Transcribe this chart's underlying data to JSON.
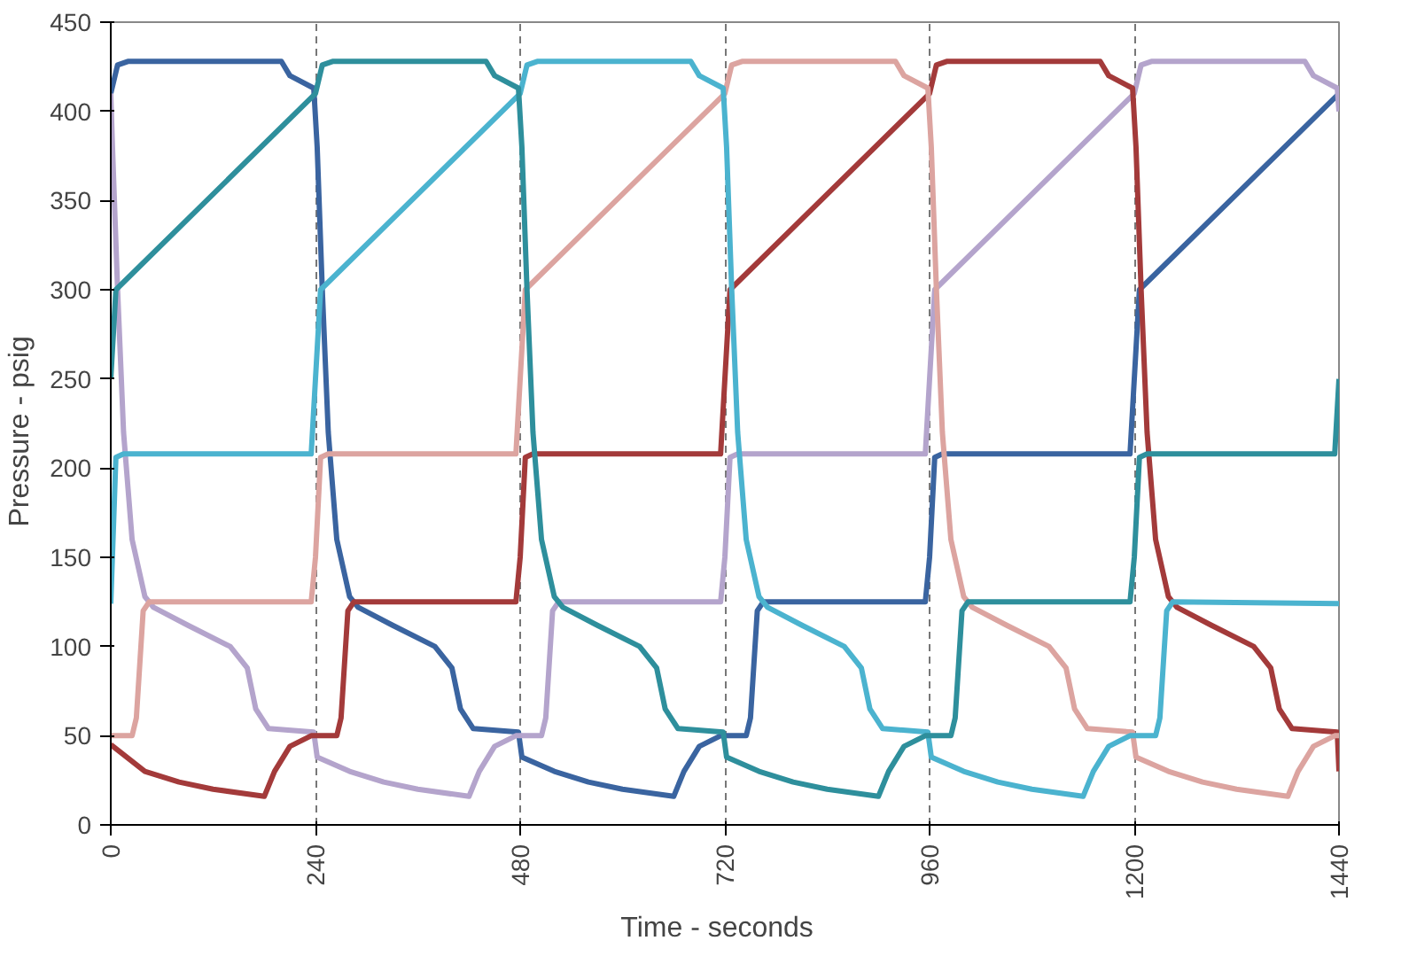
{
  "chart_data": {
    "type": "line",
    "xlabel": "Time  -  seconds",
    "ylabel": "Pressure  -  psig",
    "xlim": [
      0,
      1440
    ],
    "ylim": [
      0,
      450
    ],
    "xticks": [
      0,
      240,
      480,
      720,
      960,
      1200,
      1440
    ],
    "yticks": [
      0,
      50,
      100,
      150,
      200,
      250,
      300,
      350,
      400,
      450
    ],
    "grid": "x",
    "line_style": "solid",
    "series": [
      {
        "color": "#3a64a0",
        "x": [
          0,
          8,
          20,
          200,
          210,
          238,
          242,
          248,
          255,
          265,
          280,
          290,
          330,
          380,
          400,
          410,
          425,
          478,
          482,
          520,
          560,
          600,
          660,
          672,
          690,
          715,
          745,
          750,
          758,
          765,
          955,
          960,
          966,
          975,
          1195,
          1200,
          1206,
          1440
        ],
        "values": [
          410,
          426,
          428,
          428,
          420,
          413,
          380,
          300,
          220,
          160,
          128,
          122,
          112,
          100,
          88,
          65,
          54,
          52,
          38,
          30,
          24,
          20,
          16,
          30,
          44,
          50,
          50,
          60,
          120,
          125,
          125,
          150,
          206,
          208,
          208,
          250,
          300,
          410
        ]
      },
      {
        "color": "#b4a4cc",
        "x": [
          0,
          2,
          8,
          15,
          25,
          40,
          50,
          90,
          140,
          160,
          170,
          185,
          238,
          242,
          280,
          320,
          360,
          420,
          432,
          450,
          475,
          505,
          510,
          518,
          525,
          715,
          720,
          726,
          735,
          955,
          960,
          966,
          1200,
          1208,
          1220,
          1400,
          1410,
          1438,
          1440
        ],
        "values": [
          410,
          380,
          300,
          220,
          160,
          128,
          122,
          112,
          100,
          88,
          65,
          54,
          52,
          38,
          30,
          24,
          20,
          16,
          30,
          44,
          50,
          50,
          60,
          120,
          125,
          125,
          150,
          206,
          208,
          208,
          250,
          300,
          410,
          426,
          428,
          428,
          420,
          413,
          400
        ]
      },
      {
        "color": "#a33a3a",
        "x": [
          0,
          40,
          80,
          120,
          180,
          192,
          210,
          235,
          265,
          270,
          278,
          285,
          475,
          480,
          486,
          495,
          715,
          720,
          726,
          960,
          968,
          980,
          1160,
          1170,
          1198,
          1202,
          1208,
          1215,
          1225,
          1240,
          1250,
          1290,
          1340,
          1360,
          1370,
          1385,
          1438,
          1440
        ],
        "values": [
          45,
          30,
          24,
          20,
          16,
          30,
          44,
          50,
          50,
          60,
          120,
          125,
          125,
          150,
          206,
          208,
          208,
          250,
          300,
          410,
          426,
          428,
          428,
          420,
          413,
          380,
          300,
          220,
          160,
          128,
          122,
          112,
          100,
          88,
          65,
          54,
          52,
          30
        ]
      },
      {
        "color": "#dca4a0",
        "x": [
          0,
          25,
          30,
          38,
          45,
          235,
          240,
          246,
          255,
          475,
          480,
          486,
          720,
          728,
          740,
          920,
          930,
          958,
          962,
          968,
          975,
          985,
          1000,
          1010,
          1050,
          1100,
          1120,
          1130,
          1145,
          1198,
          1202,
          1240,
          1280,
          1320,
          1380,
          1392,
          1410,
          1435,
          1440
        ],
        "values": [
          50,
          50,
          60,
          120,
          125,
          125,
          150,
          206,
          208,
          208,
          250,
          300,
          410,
          426,
          428,
          428,
          420,
          413,
          380,
          300,
          220,
          160,
          128,
          122,
          112,
          100,
          88,
          65,
          54,
          52,
          38,
          30,
          24,
          20,
          16,
          30,
          44,
          50,
          50
        ]
      },
      {
        "color": "#4bb3cf",
        "x": [
          0,
          6,
          15,
          235,
          240,
          246,
          480,
          488,
          500,
          680,
          690,
          718,
          722,
          728,
          735,
          745,
          760,
          770,
          810,
          860,
          880,
          890,
          905,
          958,
          962,
          1000,
          1040,
          1080,
          1140,
          1152,
          1170,
          1195,
          1225,
          1230,
          1238,
          1245,
          1440
        ],
        "values": [
          124,
          206,
          208,
          208,
          250,
          300,
          410,
          426,
          428,
          428,
          420,
          413,
          380,
          300,
          220,
          160,
          128,
          122,
          112,
          100,
          88,
          65,
          54,
          52,
          38,
          30,
          24,
          20,
          16,
          30,
          44,
          50,
          50,
          60,
          120,
          125,
          124
        ]
      },
      {
        "color": "#2e8f9c",
        "x": [
          0,
          6,
          240,
          248,
          260,
          440,
          450,
          478,
          482,
          488,
          495,
          505,
          520,
          530,
          570,
          620,
          640,
          650,
          665,
          718,
          722,
          760,
          800,
          840,
          900,
          912,
          930,
          955,
          985,
          990,
          998,
          1005,
          1195,
          1200,
          1206,
          1215,
          1435,
          1440
        ],
        "values": [
          250,
          300,
          410,
          426,
          428,
          428,
          420,
          413,
          380,
          300,
          220,
          160,
          128,
          122,
          112,
          100,
          88,
          65,
          54,
          52,
          38,
          30,
          24,
          20,
          16,
          30,
          44,
          50,
          50,
          60,
          120,
          125,
          125,
          150,
          206,
          208,
          208,
          250
        ]
      }
    ]
  }
}
